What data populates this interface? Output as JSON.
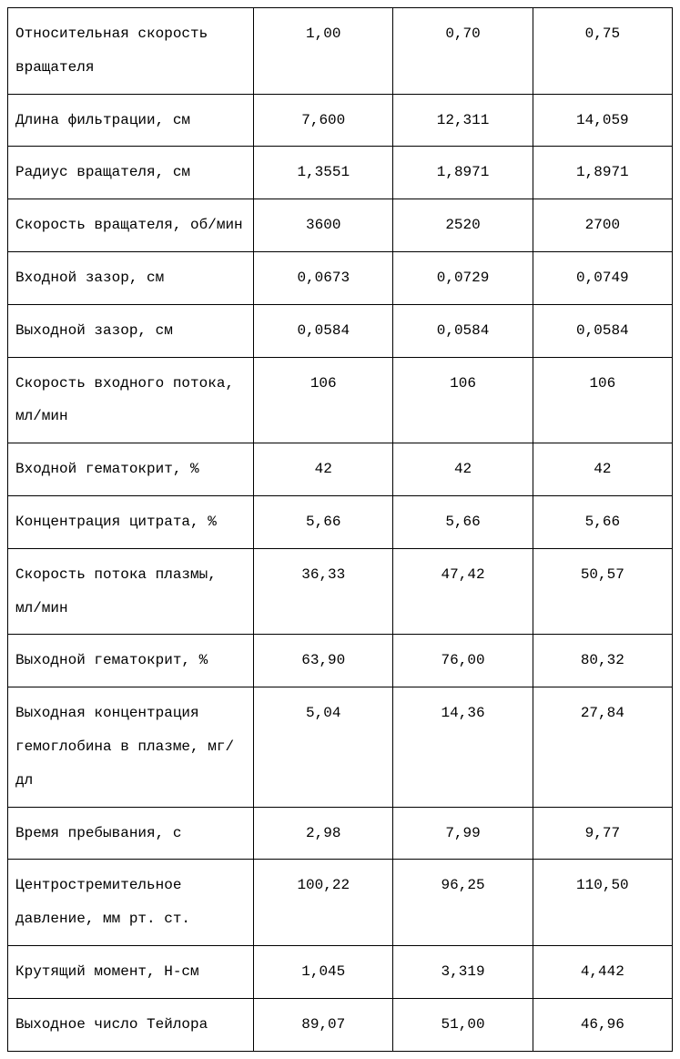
{
  "table": {
    "columns": 4,
    "column_widths": [
      "37%",
      "21%",
      "21%",
      "21%"
    ],
    "border_color": "#000000",
    "background_color": "#ffffff",
    "font_family": "Courier New",
    "font_size": 16,
    "line_height": 2.3,
    "cell_padding": "10px 8px",
    "label_align": "left",
    "value_align": "center",
    "rows": [
      {
        "label": "Относительная скорость вращателя",
        "v1": "1,00",
        "v2": "0,70",
        "v3": "0,75"
      },
      {
        "label": "Длина фильтрации, см",
        "v1": "7,600",
        "v2": "12,311",
        "v3": "14,059"
      },
      {
        "label": "Радиус вращателя, см",
        "v1": "1,3551",
        "v2": "1,8971",
        "v3": "1,8971"
      },
      {
        "label": "Скорость вращателя, об/мин",
        "v1": "3600",
        "v2": "2520",
        "v3": "2700"
      },
      {
        "label": "Входной зазор, см",
        "v1": "0,0673",
        "v2": "0,0729",
        "v3": "0,0749"
      },
      {
        "label": "Выходной зазор, см",
        "v1": "0,0584",
        "v2": "0,0584",
        "v3": "0,0584"
      },
      {
        "label": "Скорость входного потока, мл/мин",
        "v1": "106",
        "v2": "106",
        "v3": "106"
      },
      {
        "label": "Входной гематокрит, %",
        "v1": "42",
        "v2": "42",
        "v3": "42"
      },
      {
        "label": "Концентрация цитрата, %",
        "v1": "5,66",
        "v2": "5,66",
        "v3": "5,66"
      },
      {
        "label": "Скорость потока плазмы, мл/мин",
        "v1": "36,33",
        "v2": "47,42",
        "v3": "50,57"
      },
      {
        "label": "Выходной гематокрит, %",
        "v1": "63,90",
        "v2": "76,00",
        "v3": "80,32"
      },
      {
        "label": "Выходная концентрация гемоглобина в плазме, мг/дл",
        "v1": "5,04",
        "v2": "14,36",
        "v3": "27,84"
      },
      {
        "label": "Время пребывания, с",
        "v1": "2,98",
        "v2": "7,99",
        "v3": "9,77"
      },
      {
        "label": "Центростремительное давление, мм рт. ст.",
        "v1": "100,22",
        "v2": "96,25",
        "v3": "110,50"
      },
      {
        "label": "Крутящий момент, Н-см",
        "v1": "1,045",
        "v2": "3,319",
        "v3": "4,442"
      },
      {
        "label": "Выходное число Тейлора",
        "v1": "89,07",
        "v2": "51,00",
        "v3": "46,96"
      }
    ]
  }
}
